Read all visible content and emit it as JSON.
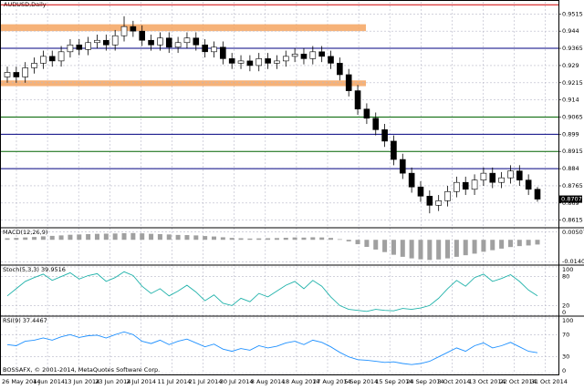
{
  "chart_data": {
    "type": "candlestick",
    "title": "AUDUSD,Daily",
    "copyright": "BOSSAFX, © 2001-2014, MetaQuotes Software Corp.",
    "dates": [
      "26 May 2014",
      "4 Jun 2014",
      "13 Jun 2014",
      "23 Jun 2014",
      "2 Jul 2014",
      "11 Jul 2014",
      "21 Jul 2014",
      "30 Jul 2014",
      "8 Aug 2014",
      "18 Aug 2014",
      "27 Aug 2014",
      "5 Sep 2014",
      "15 Sep 2014",
      "24 Sep 2014",
      "3 Oct 2014",
      "13 Oct 2014",
      "22 Oct 2014",
      "31 Oct 2014"
    ],
    "open": [
      0.924,
      0.926,
      0.924,
      0.928,
      0.93,
      0.933,
      0.931,
      0.935,
      0.938,
      0.936,
      0.939,
      0.94,
      0.938,
      0.942,
      0.946,
      0.944,
      0.94,
      0.938,
      0.941,
      0.937,
      0.939,
      0.941,
      0.938,
      0.935,
      0.937,
      0.932,
      0.93,
      0.931,
      0.929,
      0.932,
      0.93,
      0.931,
      0.933,
      0.934,
      0.932,
      0.935,
      0.933,
      0.93,
      0.925,
      0.918,
      0.91,
      0.906,
      0.901,
      0.896,
      0.888,
      0.882,
      0.876,
      0.872,
      0.868,
      0.87,
      0.874,
      0.878,
      0.875,
      0.879,
      0.882,
      0.878,
      0.88,
      0.883,
      0.879,
      0.875
    ],
    "high": [
      0.9285,
      0.9285,
      0.9305,
      0.9325,
      0.9355,
      0.9355,
      0.9375,
      0.9405,
      0.9405,
      0.9415,
      0.9425,
      0.9425,
      0.9445,
      0.9505,
      0.9485,
      0.9465,
      0.9425,
      0.9435,
      0.9435,
      0.9415,
      0.9435,
      0.9435,
      0.9405,
      0.9395,
      0.9395,
      0.9345,
      0.9335,
      0.9335,
      0.9345,
      0.9345,
      0.9335,
      0.9355,
      0.9365,
      0.9365,
      0.9375,
      0.9375,
      0.9355,
      0.9325,
      0.9275,
      0.9205,
      0.9125,
      0.9085,
      0.9035,
      0.8985,
      0.8905,
      0.8845,
      0.8785,
      0.8745,
      0.8725,
      0.8765,
      0.8805,
      0.8805,
      0.8815,
      0.8845,
      0.8845,
      0.8825,
      0.8855,
      0.8855,
      0.8815,
      0.876
    ],
    "low": [
      0.9215,
      0.9215,
      0.9215,
      0.9255,
      0.9275,
      0.9285,
      0.9285,
      0.9325,
      0.9335,
      0.9335,
      0.9365,
      0.9355,
      0.9355,
      0.9395,
      0.9415,
      0.9375,
      0.9355,
      0.9355,
      0.9345,
      0.9345,
      0.9365,
      0.9355,
      0.9325,
      0.9325,
      0.9295,
      0.9275,
      0.9275,
      0.9265,
      0.9265,
      0.9275,
      0.9275,
      0.9285,
      0.9305,
      0.9295,
      0.9295,
      0.9305,
      0.9275,
      0.9225,
      0.9155,
      0.9075,
      0.9035,
      0.8985,
      0.8935,
      0.8855,
      0.8795,
      0.8735,
      0.8695,
      0.8645,
      0.8655,
      0.8675,
      0.8715,
      0.8725,
      0.8725,
      0.8765,
      0.8755,
      0.8755,
      0.8775,
      0.8765,
      0.8725,
      0.8696
    ],
    "close": [
      0.926,
      0.924,
      0.928,
      0.93,
      0.933,
      0.931,
      0.935,
      0.938,
      0.936,
      0.939,
      0.94,
      0.938,
      0.942,
      0.946,
      0.944,
      0.94,
      0.938,
      0.941,
      0.937,
      0.939,
      0.941,
      0.938,
      0.935,
      0.937,
      0.932,
      0.93,
      0.931,
      0.929,
      0.932,
      0.93,
      0.931,
      0.933,
      0.934,
      0.932,
      0.935,
      0.933,
      0.93,
      0.925,
      0.918,
      0.91,
      0.906,
      0.901,
      0.896,
      0.888,
      0.882,
      0.876,
      0.872,
      0.868,
      0.87,
      0.874,
      0.878,
      0.875,
      0.879,
      0.882,
      0.878,
      0.88,
      0.883,
      0.879,
      0.875,
      0.8707
    ],
    "last_price": {
      "value": 0.8707,
      "label": "0.8707"
    },
    "ylim": [
      0.859,
      0.956
    ],
    "yticks": [
      0.9515,
      0.944,
      0.9365,
      0.929,
      0.9215,
      0.914,
      0.9065,
      0.899,
      0.8915,
      0.884,
      0.8765,
      0.869,
      0.8615
    ],
    "grid": true,
    "zones": [
      {
        "from": 0.944,
        "to": 0.947,
        "color": "#f4a460"
      },
      {
        "from": 0.92,
        "to": 0.9225,
        "color": "#f4a460"
      }
    ],
    "levels": [
      {
        "value": 0.9555,
        "color": "#d00000"
      },
      {
        "value": 0.9365,
        "color": "#000080"
      },
      {
        "value": 0.9065,
        "color": "#006400"
      },
      {
        "value": 0.899,
        "color": "#000080"
      },
      {
        "value": 0.8915,
        "color": "#006400"
      },
      {
        "value": 0.884,
        "color": "#000080"
      }
    ],
    "macd": {
      "label": "MACD(12,26,9)",
      "color": "#a0a0a0",
      "ylim": [
        -0.0155,
        0.0065
      ],
      "yticks": [
        0.00507,
        -0.01402
      ],
      "values": [
        0.001,
        0.0012,
        0.0015,
        0.0018,
        0.0022,
        0.0025,
        0.0028,
        0.0032,
        0.0034,
        0.0036,
        0.0038,
        0.0039,
        0.004,
        0.0042,
        0.0043,
        0.0041,
        0.0038,
        0.0036,
        0.0034,
        0.0031,
        0.003,
        0.0028,
        0.0024,
        0.0021,
        0.0016,
        0.0012,
        0.001,
        0.0008,
        0.0009,
        0.001,
        0.0011,
        0.0013,
        0.0015,
        0.0014,
        0.0016,
        0.0015,
        0.0012,
        0.0004,
        -0.001,
        -0.0028,
        -0.0045,
        -0.0062,
        -0.0078,
        -0.0095,
        -0.0108,
        -0.0118,
        -0.0124,
        -0.0128,
        -0.0125,
        -0.0118,
        -0.0108,
        -0.0098,
        -0.0088,
        -0.0076,
        -0.0066,
        -0.0056,
        -0.0046,
        -0.004,
        -0.0036,
        -0.003
      ]
    },
    "stoch": {
      "label": "Stoch(5,3,3) 39.9516",
      "color": "#20b2aa",
      "ylim": [
        0,
        100
      ],
      "yticks": [
        100,
        80,
        20,
        0
      ],
      "values": [
        40,
        55,
        70,
        78,
        85,
        72,
        80,
        88,
        75,
        82,
        86,
        70,
        78,
        90,
        82,
        60,
        45,
        55,
        40,
        50,
        62,
        48,
        30,
        42,
        25,
        20,
        35,
        28,
        45,
        38,
        50,
        62,
        70,
        55,
        72,
        60,
        38,
        20,
        12,
        10,
        8,
        12,
        10,
        9,
        14,
        12,
        15,
        20,
        35,
        55,
        72,
        60,
        78,
        85,
        70,
        76,
        84,
        70,
        52,
        39.9516
      ]
    },
    "rsi": {
      "label": "RSI(9) 37.4467",
      "color": "#1e90ff",
      "ylim": [
        0,
        100
      ],
      "yticks": [
        100,
        70,
        30,
        0
      ],
      "values": [
        52,
        50,
        58,
        60,
        64,
        60,
        66,
        70,
        65,
        68,
        69,
        64,
        70,
        75,
        70,
        58,
        54,
        60,
        52,
        58,
        62,
        55,
        48,
        53,
        44,
        40,
        45,
        42,
        50,
        46,
        49,
        55,
        58,
        52,
        60,
        56,
        48,
        38,
        30,
        25,
        24,
        22,
        20,
        21,
        18,
        16,
        18,
        22,
        30,
        38,
        46,
        40,
        50,
        55,
        46,
        50,
        56,
        48,
        40,
        37.4467
      ]
    }
  }
}
